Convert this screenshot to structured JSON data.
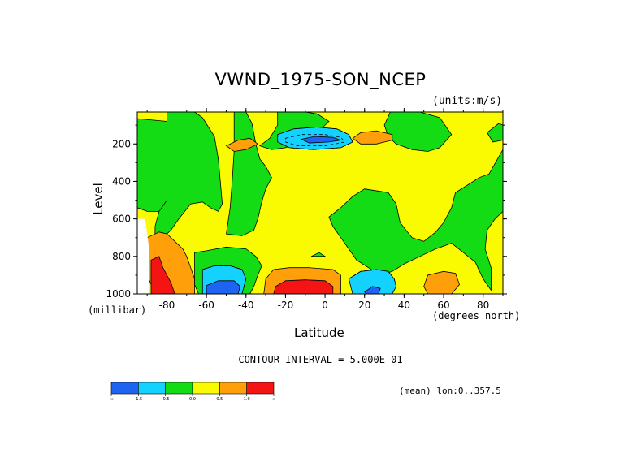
{
  "chart_data": {
    "type": "heatmap",
    "title": "VWND_1975-SON_NCEP",
    "units_label": "(units:m/s)",
    "xlabel": "Latitude",
    "x_units_label": "(degrees_north)",
    "ylabel": "Level",
    "y_units_label": "(millibar)",
    "xlim": [
      -95,
      90
    ],
    "ylim": [
      1000,
      30
    ],
    "y_inverted": true,
    "x_ticks": [
      -80,
      -60,
      -40,
      -20,
      0,
      20,
      40,
      60,
      80
    ],
    "y_ticks": [
      200,
      400,
      600,
      800,
      1000
    ],
    "contour_interval_label": "CONTOUR INTERVAL = 5.000E-01",
    "annotation": "(mean) lon:0..357.5",
    "colorbar": {
      "colors": [
        "#1e64f0",
        "#14d2ff",
        "#14dc14",
        "#fafa00",
        "#ffa00a",
        "#f51414"
      ],
      "labels": [
        "-∞",
        "-1.5",
        "-0.5",
        "0.0",
        "0.5",
        "1.0",
        "∞"
      ]
    },
    "regions": [
      {
        "value": 0.25,
        "points": [
          [
            -95,
            30
          ],
          [
            90,
            30
          ],
          [
            90,
            1000
          ],
          [
            -95,
            1000
          ]
        ]
      },
      {
        "value": -0.25,
        "points": [
          [
            -95,
            65
          ],
          [
            -80,
            80
          ],
          [
            -80,
            560
          ],
          [
            -90,
            560
          ],
          [
            -95,
            540
          ]
        ]
      },
      {
        "value": -0.25,
        "points": [
          [
            -80,
            30
          ],
          [
            -66,
            30
          ],
          [
            -62,
            60
          ],
          [
            -56,
            160
          ],
          [
            -54,
            280
          ],
          [
            -53,
            400
          ],
          [
            -52,
            520
          ],
          [
            -54,
            560
          ],
          [
            -58,
            540
          ],
          [
            -62,
            510
          ],
          [
            -68,
            520
          ],
          [
            -74,
            600
          ],
          [
            -78,
            660
          ],
          [
            -82,
            700
          ],
          [
            -86,
            760
          ],
          [
            -86,
            640
          ],
          [
            -84,
            560
          ],
          [
            -80,
            500
          ],
          [
            -80,
            300
          ]
        ]
      },
      {
        "value": -0.25,
        "points": [
          [
            -46,
            30
          ],
          [
            -40,
            30
          ],
          [
            -37,
            90
          ],
          [
            -35,
            200
          ],
          [
            -33,
            280
          ],
          [
            -30,
            320
          ],
          [
            -27,
            380
          ],
          [
            -30,
            440
          ],
          [
            -32,
            510
          ],
          [
            -34,
            600
          ],
          [
            -36,
            660
          ],
          [
            -42,
            690
          ],
          [
            -50,
            680
          ],
          [
            -48,
            540
          ],
          [
            -47,
            400
          ],
          [
            -46,
            240
          ]
        ]
      },
      {
        "value": -0.25,
        "points": [
          [
            -24,
            30
          ],
          [
            -10,
            30
          ],
          [
            -4,
            40
          ],
          [
            2,
            80
          ],
          [
            -3,
            130
          ],
          [
            -9,
            160
          ],
          [
            -12,
            190
          ],
          [
            -20,
            220
          ],
          [
            -27,
            230
          ],
          [
            -33,
            210
          ],
          [
            -28,
            170
          ],
          [
            -24,
            100
          ]
        ]
      },
      {
        "value": -0.25,
        "points": [
          [
            -66,
            780
          ],
          [
            -60,
            770
          ],
          [
            -50,
            750
          ],
          [
            -40,
            760
          ],
          [
            -35,
            800
          ],
          [
            -32,
            850
          ],
          [
            -34,
            900
          ],
          [
            -36,
            960
          ],
          [
            -38,
            1000
          ],
          [
            -64,
            1000
          ],
          [
            -66,
            950
          ]
        ]
      },
      {
        "value": -0.25,
        "points": [
          [
            33,
            30
          ],
          [
            48,
            30
          ],
          [
            58,
            60
          ],
          [
            64,
            150
          ],
          [
            58,
            220
          ],
          [
            52,
            240
          ],
          [
            44,
            230
          ],
          [
            36,
            200
          ],
          [
            32,
            160
          ],
          [
            30,
            100
          ]
        ]
      },
      {
        "value": -0.25,
        "points": [
          [
            20,
            440
          ],
          [
            32,
            460
          ],
          [
            36,
            520
          ],
          [
            38,
            620
          ],
          [
            44,
            700
          ],
          [
            50,
            720
          ],
          [
            56,
            670
          ],
          [
            60,
            620
          ],
          [
            64,
            540
          ],
          [
            66,
            460
          ],
          [
            72,
            420
          ],
          [
            78,
            380
          ],
          [
            83,
            360
          ],
          [
            90,
            230
          ],
          [
            90,
            560
          ],
          [
            86,
            600
          ],
          [
            82,
            660
          ],
          [
            81,
            760
          ],
          [
            84,
            860
          ],
          [
            84,
            980
          ],
          [
            80,
            920
          ],
          [
            76,
            830
          ],
          [
            70,
            780
          ],
          [
            64,
            730
          ],
          [
            56,
            760
          ],
          [
            48,
            800
          ],
          [
            40,
            840
          ],
          [
            34,
            880
          ],
          [
            28,
            900
          ],
          [
            22,
            860
          ],
          [
            16,
            820
          ],
          [
            12,
            760
          ],
          [
            8,
            700
          ],
          [
            4,
            640
          ],
          [
            2,
            590
          ],
          [
            8,
            540
          ],
          [
            14,
            480
          ]
        ]
      },
      {
        "value": -0.25,
        "points": [
          [
            82,
            140
          ],
          [
            88,
            90
          ],
          [
            90,
            100
          ],
          [
            90,
            180
          ],
          [
            85,
            190
          ]
        ]
      },
      {
        "value": -0.75,
        "points": [
          [
            -62,
            870
          ],
          [
            -56,
            850
          ],
          [
            -48,
            850
          ],
          [
            -42,
            870
          ],
          [
            -40,
            920
          ],
          [
            -42,
            1000
          ],
          [
            -62,
            1000
          ]
        ]
      },
      {
        "value": -0.75,
        "points": [
          [
            12,
            920
          ],
          [
            18,
            880
          ],
          [
            26,
            870
          ],
          [
            32,
            880
          ],
          [
            35,
            920
          ],
          [
            36,
            960
          ],
          [
            34,
            1000
          ],
          [
            14,
            1000
          ]
        ]
      },
      {
        "value": -0.75,
        "points": [
          [
            -24,
            150
          ],
          [
            -16,
            120
          ],
          [
            -4,
            110
          ],
          [
            6,
            120
          ],
          [
            12,
            150
          ],
          [
            14,
            190
          ],
          [
            8,
            220
          ],
          [
            -6,
            230
          ],
          [
            -18,
            220
          ],
          [
            -24,
            190
          ]
        ]
      },
      {
        "value": -1.75,
        "points": [
          [
            -60,
            955
          ],
          [
            -54,
            930
          ],
          [
            -46,
            930
          ],
          [
            -43,
            960
          ],
          [
            -44,
            1000
          ],
          [
            -60,
            1000
          ]
        ]
      },
      {
        "value": -1.75,
        "points": [
          [
            20,
            990
          ],
          [
            24,
            960
          ],
          [
            28,
            970
          ],
          [
            27,
            1000
          ],
          [
            21,
            1000
          ]
        ]
      },
      {
        "value": -1.75,
        "points": [
          [
            -12,
            175
          ],
          [
            -5,
            160
          ],
          [
            4,
            165
          ],
          [
            8,
            180
          ],
          [
            2,
            190
          ],
          [
            -8,
            195
          ]
        ]
      },
      {
        "value": 0.75,
        "points": [
          [
            -50,
            210
          ],
          [
            -44,
            180
          ],
          [
            -38,
            170
          ],
          [
            -34,
            200
          ],
          [
            -40,
            230
          ],
          [
            -46,
            240
          ]
        ]
      },
      {
        "value": 0.75,
        "points": [
          [
            14,
            170
          ],
          [
            18,
            140
          ],
          [
            26,
            130
          ],
          [
            34,
            150
          ],
          [
            34,
            180
          ],
          [
            26,
            200
          ],
          [
            18,
            200
          ]
        ]
      },
      {
        "value": 0.75,
        "points": [
          [
            50,
            960
          ],
          [
            52,
            900
          ],
          [
            60,
            880
          ],
          [
            66,
            890
          ],
          [
            68,
            950
          ],
          [
            64,
            1000
          ],
          [
            52,
            1000
          ]
        ]
      },
      {
        "value": 0.75,
        "points": [
          [
            -90,
            700
          ],
          [
            -84,
            670
          ],
          [
            -80,
            680
          ],
          [
            -76,
            720
          ],
          [
            -72,
            760
          ],
          [
            -70,
            800
          ],
          [
            -68,
            860
          ],
          [
            -66,
            920
          ],
          [
            -66,
            1000
          ],
          [
            -86,
            1000
          ],
          [
            -90,
            900
          ]
        ]
      },
      {
        "value": 0.75,
        "points": [
          [
            -31,
            1000
          ],
          [
            -30,
            920
          ],
          [
            -26,
            870
          ],
          [
            -18,
            860
          ],
          [
            -8,
            860
          ],
          [
            4,
            870
          ],
          [
            8,
            900
          ],
          [
            8,
            1000
          ]
        ]
      },
      {
        "value": 1.5,
        "points": [
          [
            -88,
            820
          ],
          [
            -84,
            800
          ],
          [
            -82,
            860
          ],
          [
            -78,
            940
          ],
          [
            -76,
            1000
          ],
          [
            -88,
            1000
          ]
        ]
      },
      {
        "value": 1.5,
        "points": [
          [
            -26,
            1000
          ],
          [
            -25,
            960
          ],
          [
            -20,
            930
          ],
          [
            -10,
            925
          ],
          [
            0,
            930
          ],
          [
            4,
            960
          ],
          [
            4,
            1000
          ]
        ]
      },
      {
        "value": -0.25,
        "points": [
          [
            -7,
            800
          ],
          [
            -3,
            780
          ],
          [
            0,
            800
          ]
        ]
      }
    ],
    "dashed_contours": [
      [
        [
          -24,
          150
        ],
        [
          -16,
          120
        ],
        [
          -4,
          110
        ],
        [
          6,
          120
        ],
        [
          12,
          150
        ],
        [
          14,
          190
        ],
        [
          8,
          220
        ],
        [
          -6,
          230
        ],
        [
          -18,
          220
        ],
        [
          -24,
          190
        ],
        [
          -24,
          150
        ]
      ],
      [
        [
          -20,
          170
        ],
        [
          -12,
          150
        ],
        [
          0,
          150
        ],
        [
          8,
          165
        ],
        [
          10,
          190
        ],
        [
          0,
          210
        ],
        [
          -14,
          210
        ],
        [
          -20,
          190
        ],
        [
          -20,
          170
        ]
      ],
      [
        [
          -62,
          870
        ],
        [
          -56,
          850
        ],
        [
          -48,
          850
        ],
        [
          -42,
          870
        ],
        [
          -40,
          920
        ],
        [
          -42,
          1000
        ]
      ],
      [
        [
          12,
          920
        ],
        [
          18,
          880
        ],
        [
          26,
          870
        ],
        [
          32,
          880
        ],
        [
          35,
          920
        ],
        [
          36,
          960
        ],
        [
          34,
          1000
        ]
      ]
    ],
    "missing_regions": [
      {
        "points": [
          [
            -95,
            600
          ],
          [
            -91,
            600
          ],
          [
            -90,
            680
          ],
          [
            -89,
            760
          ],
          [
            -89,
            1000
          ],
          [
            -95,
            1000
          ]
        ]
      }
    ]
  }
}
